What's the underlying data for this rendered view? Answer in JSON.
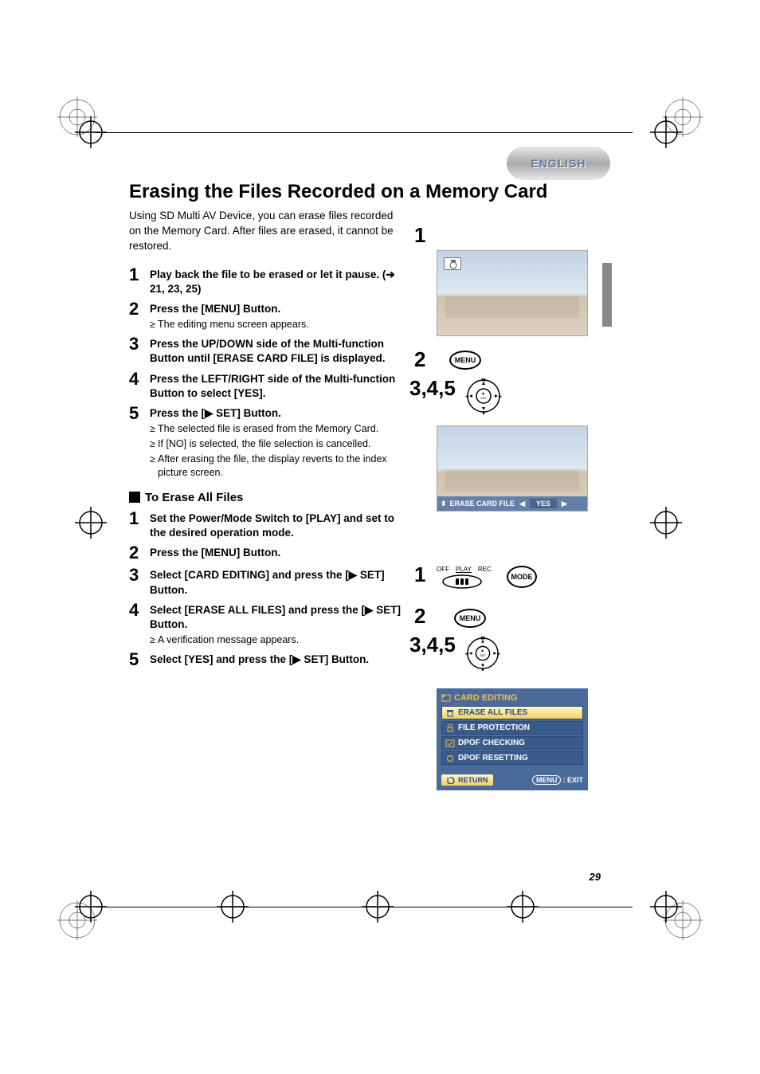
{
  "page_number": "29",
  "badge": "ENGLISH",
  "heading": "Erasing the Files Recorded on a Memory Card",
  "intro": "Using SD Multi AV Device, you can erase files recorded on the Memory Card. After files are erased, it cannot be restored.",
  "steps_a": [
    {
      "n": "1",
      "title": "Play back the file to be erased or let it pause. (➔ 21, 23, 25)",
      "bullets": []
    },
    {
      "n": "2",
      "title": "Press the [MENU] Button.",
      "bullets": [
        "The editing menu screen appears."
      ]
    },
    {
      "n": "3",
      "title": "Press the UP/DOWN side of the Multi-function Button until [ERASE CARD FILE] is displayed.",
      "bullets": []
    },
    {
      "n": "4",
      "title": "Press the LEFT/RIGHT side of the Multi-function Button to select [YES].",
      "bullets": []
    },
    {
      "n": "5",
      "title": "Press the [▶ SET] Button.",
      "bullets": [
        "The selected file is erased from the Memory Card.",
        "If [NO] is selected, the file selection is cancelled.",
        "After erasing the file, the display reverts to the index picture screen."
      ]
    }
  ],
  "subheading": "To Erase All Files",
  "steps_b": [
    {
      "n": "1",
      "title": "Set the Power/Mode Switch to [PLAY] and set to the desired operation mode.",
      "bullets": []
    },
    {
      "n": "2",
      "title": "Press the [MENU] Button.",
      "bullets": []
    },
    {
      "n": "3",
      "title": "Select [CARD EDITING] and press the [▶ SET] Button.",
      "bullets": []
    },
    {
      "n": "4",
      "title": "Select [ERASE ALL FILES] and press the [▶ SET] Button.",
      "bullets": [
        "A verification message appears."
      ]
    },
    {
      "n": "5",
      "title": "Select [YES] and press the [▶ SET] Button.",
      "bullets": []
    }
  ],
  "right_refs_a": {
    "r1": "1",
    "r2": "2",
    "r345": "3,4,5"
  },
  "right_refs_b": {
    "r1": "1",
    "r2": "2",
    "r345": "3,4,5"
  },
  "buttons": {
    "menu": "MENU",
    "mode": "MODE"
  },
  "power_switch": {
    "labels": [
      "OFF",
      "PLAY",
      "REC"
    ]
  },
  "erase_bar": {
    "label": "ERASE CARD FILE",
    "yes": "YES"
  },
  "menu_panel": {
    "title": "CARD EDITING",
    "items": [
      "ERASE ALL FILES",
      "FILE PROTECTION",
      "DPOF CHECKING",
      "DPOF RESETTING"
    ],
    "return": "RETURN",
    "exit_menu": "MENU",
    "exit": ": EXIT"
  },
  "colors": {
    "panel_bg": "#4a6a9a",
    "panel_item": "#3a5a8a",
    "highlight": "#f0d060",
    "title_color": "#f0c040",
    "badge_text": "#5a7a9a"
  }
}
